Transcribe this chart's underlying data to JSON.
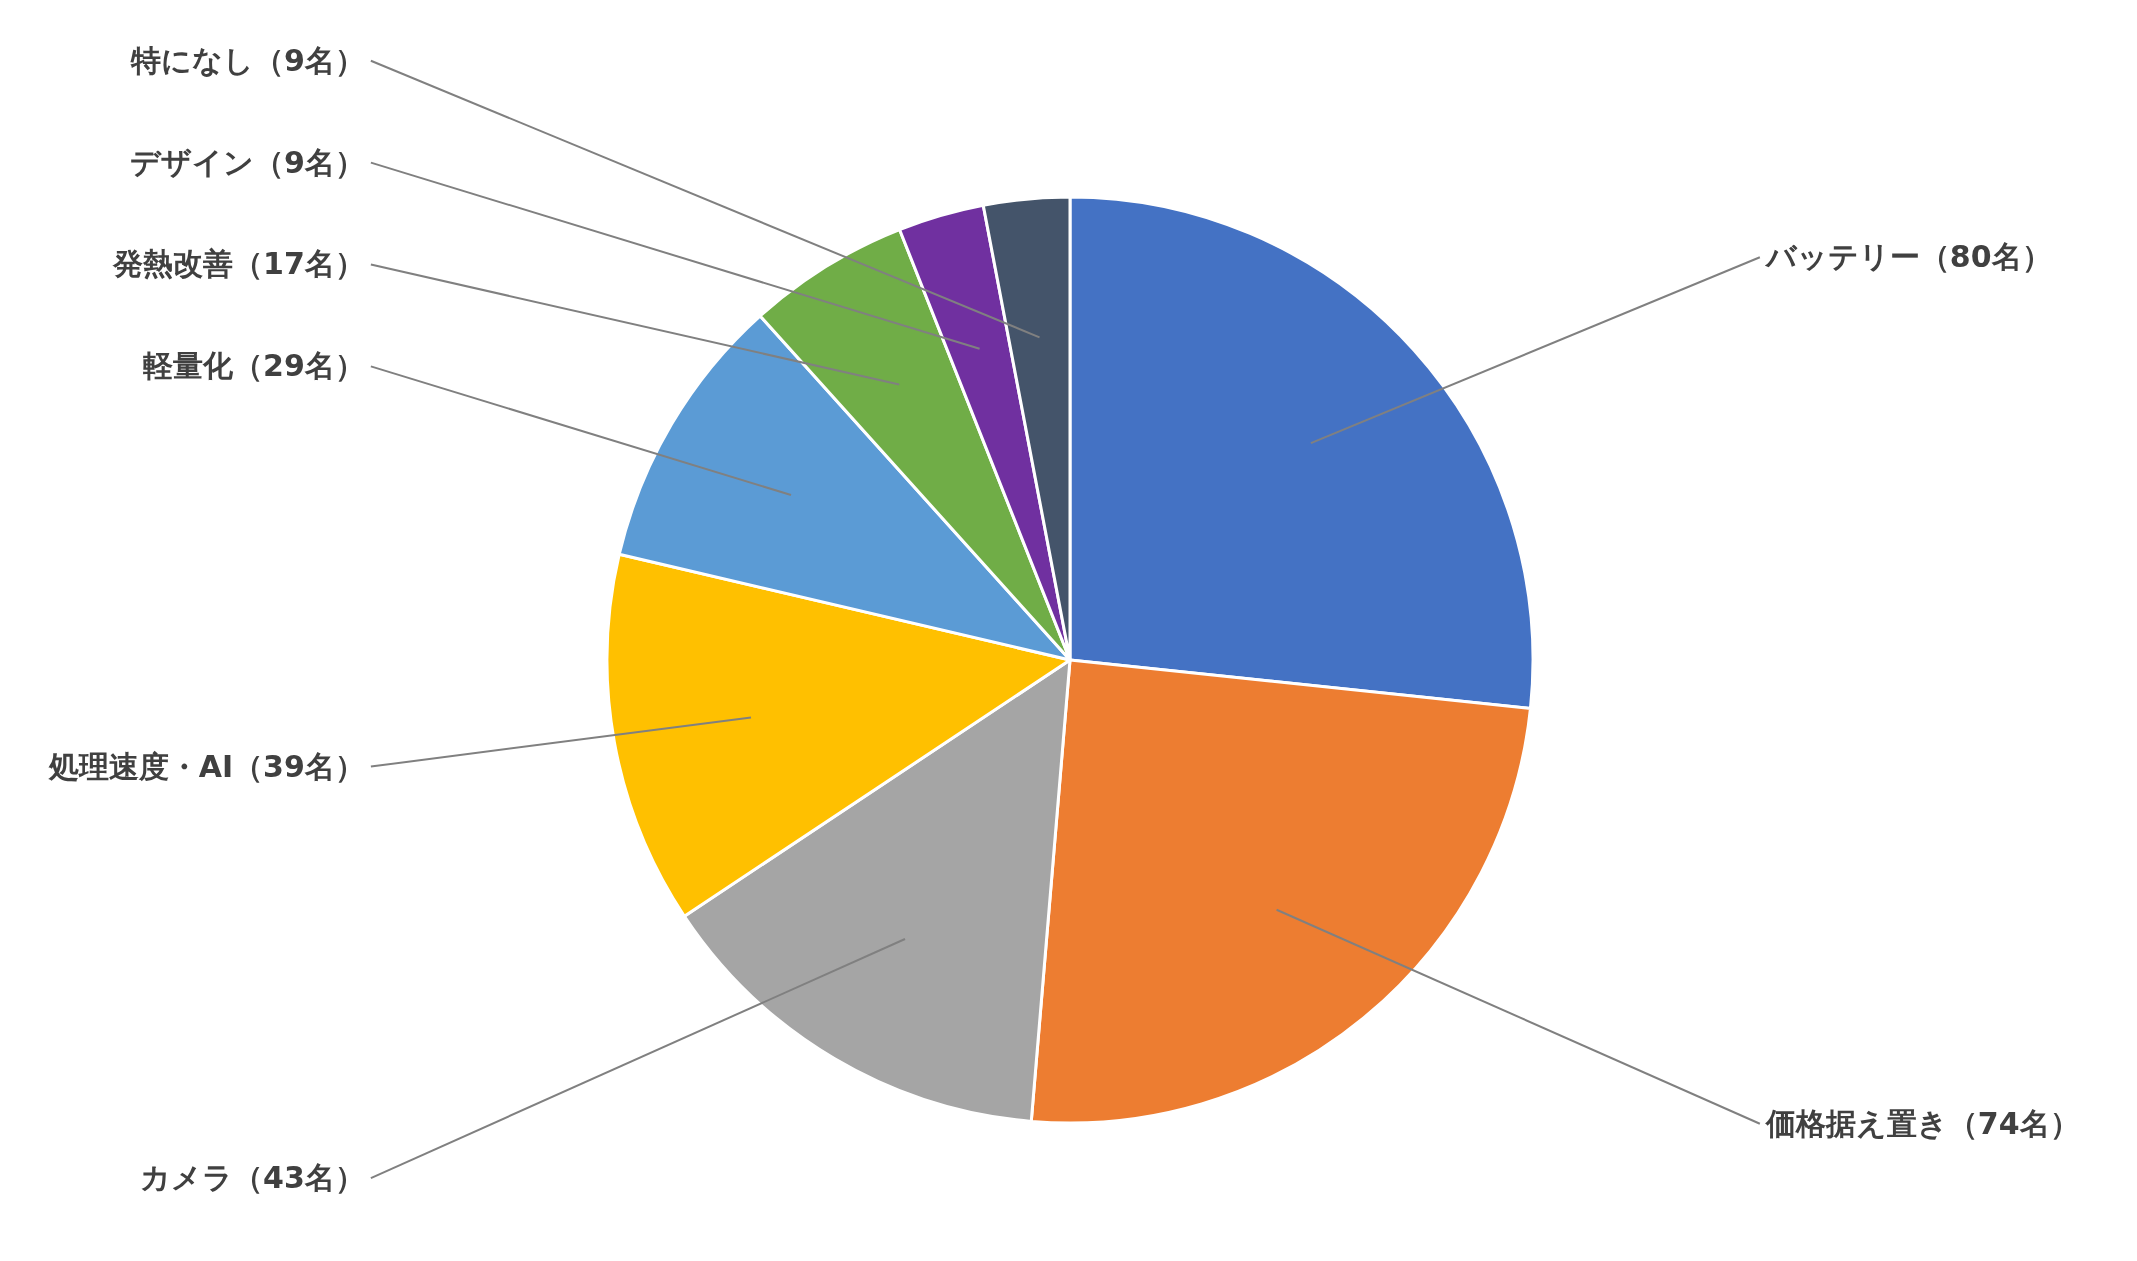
{
  "chart_data": {
    "type": "pie",
    "categories": [
      "バッテリー（80名）",
      "価格据え置き（74名）",
      "カメラ（43名）",
      "処理速度・AI（39名）",
      "軽量化（29名）",
      "発熱改善（17名）",
      "デザイン（9名）",
      "特になし（9名）"
    ],
    "values": [
      80,
      74,
      43,
      39,
      29,
      17,
      9,
      9
    ],
    "colors": [
      "#4472c4",
      "#ed7d31",
      "#a5a5a5",
      "#ffc000",
      "#5b9bd5",
      "#70ad47",
      "#7030a0",
      "#44546a"
    ]
  }
}
